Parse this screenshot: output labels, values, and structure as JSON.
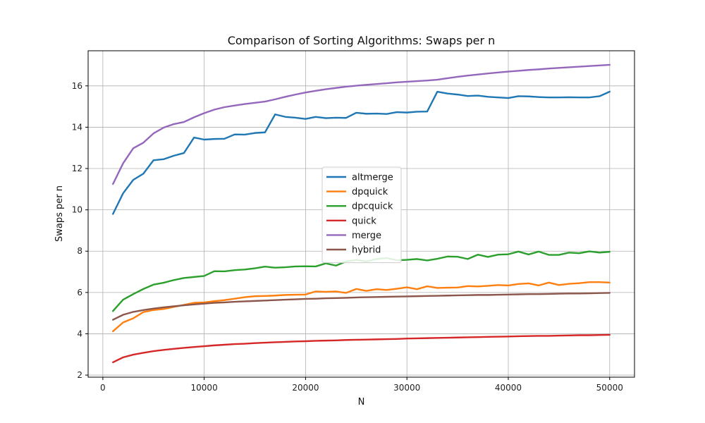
{
  "chart_data": {
    "type": "line",
    "title": "Comparison of Sorting Algorithms: Swaps per n",
    "xlabel": "N",
    "ylabel": "Swaps per n",
    "xlim": [
      -1450,
      52450
    ],
    "ylim": [
      1.9,
      17.7
    ],
    "xticks": [
      0,
      10000,
      20000,
      30000,
      40000,
      50000
    ],
    "yticks": [
      2,
      4,
      6,
      8,
      10,
      12,
      14,
      16
    ],
    "grid": true,
    "legend": "center",
    "x": [
      1000,
      2000,
      3000,
      4000,
      5000,
      6000,
      7000,
      8000,
      9000,
      10000,
      11000,
      12000,
      13000,
      14000,
      15000,
      16000,
      17000,
      18000,
      19000,
      20000,
      21000,
      22000,
      23000,
      24000,
      25000,
      26000,
      27000,
      28000,
      29000,
      30000,
      31000,
      32000,
      33000,
      34000,
      35000,
      36000,
      37000,
      38000,
      39000,
      40000,
      41000,
      42000,
      43000,
      44000,
      45000,
      46000,
      47000,
      48000,
      49000,
      50000
    ],
    "series": [
      {
        "name": "altmerge",
        "color": "#1f77b4",
        "values": [
          9.8,
          10.8,
          11.45,
          11.75,
          12.4,
          12.45,
          12.62,
          12.75,
          13.5,
          13.4,
          13.43,
          13.44,
          13.65,
          13.64,
          13.72,
          13.75,
          14.62,
          14.5,
          14.46,
          14.4,
          14.5,
          14.44,
          14.46,
          14.45,
          14.7,
          14.65,
          14.66,
          14.64,
          14.73,
          14.71,
          14.75,
          14.76,
          15.72,
          15.63,
          15.58,
          15.51,
          15.53,
          15.47,
          15.44,
          15.41,
          15.5,
          15.49,
          15.46,
          15.44,
          15.44,
          15.45,
          15.44,
          15.44,
          15.5,
          15.72
        ]
      },
      {
        "name": "dpquick",
        "color": "#ff7f0e",
        "values": [
          4.12,
          4.55,
          4.75,
          5.05,
          5.15,
          5.2,
          5.3,
          5.4,
          5.5,
          5.52,
          5.58,
          5.63,
          5.7,
          5.77,
          5.82,
          5.83,
          5.85,
          5.88,
          5.89,
          5.9,
          6.05,
          6.03,
          6.05,
          5.98,
          6.17,
          6.08,
          6.16,
          6.12,
          6.18,
          6.25,
          6.16,
          6.3,
          6.22,
          6.23,
          6.24,
          6.31,
          6.29,
          6.32,
          6.36,
          6.34,
          6.41,
          6.44,
          6.34,
          6.48,
          6.36,
          6.42,
          6.45,
          6.5,
          6.5,
          6.48
        ]
      },
      {
        "name": "dpcquick",
        "color": "#2ca02c",
        "values": [
          5.1,
          5.65,
          5.92,
          6.17,
          6.38,
          6.47,
          6.6,
          6.7,
          6.75,
          6.8,
          7.03,
          7.02,
          7.08,
          7.11,
          7.17,
          7.25,
          7.2,
          7.22,
          7.26,
          7.27,
          7.26,
          7.41,
          7.3,
          7.5,
          7.58,
          7.5,
          7.62,
          7.67,
          7.56,
          7.58,
          7.62,
          7.55,
          7.63,
          7.74,
          7.73,
          7.62,
          7.83,
          7.72,
          7.83,
          7.85,
          7.98,
          7.84,
          7.98,
          7.82,
          7.82,
          7.93,
          7.9,
          7.99,
          7.93,
          7.97
        ]
      },
      {
        "name": "quick",
        "color": "#d62728",
        "values": [
          2.62,
          2.86,
          2.99,
          3.08,
          3.16,
          3.22,
          3.27,
          3.32,
          3.36,
          3.4,
          3.44,
          3.47,
          3.5,
          3.52,
          3.55,
          3.57,
          3.59,
          3.61,
          3.63,
          3.64,
          3.66,
          3.67,
          3.68,
          3.7,
          3.71,
          3.72,
          3.73,
          3.74,
          3.75,
          3.77,
          3.78,
          3.79,
          3.8,
          3.81,
          3.82,
          3.83,
          3.84,
          3.85,
          3.86,
          3.87,
          3.88,
          3.89,
          3.9,
          3.9,
          3.91,
          3.92,
          3.93,
          3.93,
          3.94,
          3.95
        ]
      },
      {
        "name": "merge",
        "color": "#9467bd",
        "values": [
          11.25,
          12.25,
          12.98,
          13.25,
          13.7,
          13.98,
          14.15,
          14.25,
          14.48,
          14.68,
          14.85,
          14.97,
          15.05,
          15.12,
          15.18,
          15.24,
          15.35,
          15.47,
          15.58,
          15.68,
          15.76,
          15.84,
          15.9,
          15.96,
          16.01,
          16.05,
          16.09,
          16.13,
          16.17,
          16.2,
          16.23,
          16.26,
          16.3,
          16.37,
          16.44,
          16.5,
          16.55,
          16.6,
          16.65,
          16.69,
          16.73,
          16.77,
          16.8,
          16.84,
          16.87,
          16.9,
          16.93,
          16.96,
          16.99,
          17.02
        ]
      },
      {
        "name": "hybrid",
        "color": "#8c564b",
        "values": [
          4.68,
          4.92,
          5.06,
          5.15,
          5.22,
          5.28,
          5.33,
          5.38,
          5.42,
          5.46,
          5.5,
          5.52,
          5.55,
          5.57,
          5.59,
          5.61,
          5.63,
          5.65,
          5.67,
          5.69,
          5.7,
          5.72,
          5.73,
          5.74,
          5.76,
          5.77,
          5.78,
          5.79,
          5.8,
          5.81,
          5.82,
          5.83,
          5.84,
          5.85,
          5.86,
          5.87,
          5.88,
          5.88,
          5.89,
          5.9,
          5.91,
          5.92,
          5.92,
          5.93,
          5.94,
          5.95,
          5.95,
          5.96,
          5.97,
          5.98
        ]
      }
    ]
  }
}
